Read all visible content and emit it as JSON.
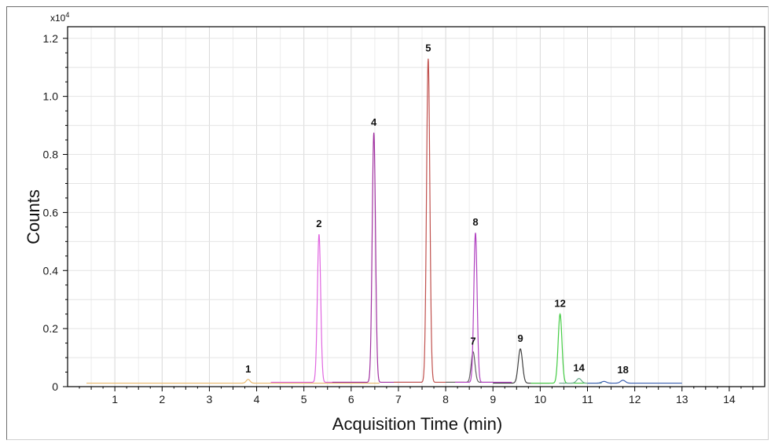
{
  "chart_data": {
    "type": "line",
    "title": "",
    "xlabel": "Acquisition Time (min)",
    "ylabel": "Counts",
    "y_multiplier": "x10",
    "y_multiplier_exp": "4",
    "xlim": [
      0,
      14.75
    ],
    "ylim": [
      0,
      1.24
    ],
    "x_ticks": [
      "1",
      "2",
      "3",
      "4",
      "5",
      "6",
      "7",
      "8",
      "9",
      "10",
      "11",
      "12",
      "13",
      "14"
    ],
    "y_ticks": [
      "0",
      "0.2",
      "0.4",
      "0.6",
      "0.8",
      "1.0",
      "1.2"
    ],
    "grid": true,
    "series": [
      {
        "color": "#e8b86a",
        "x_range": [
          0.4,
          6.6
        ],
        "baseline": 0.012,
        "peaks": [
          {
            "x": 3.82,
            "y": 0.025,
            "w": 0.04
          }
        ]
      },
      {
        "color": "#e066e0",
        "x_range": [
          4.3,
          6.3
        ],
        "baseline": 0.015,
        "peaks": [
          {
            "x": 5.32,
            "y": 0.525,
            "w": 0.035
          }
        ]
      },
      {
        "color": "#a030a0",
        "x_range": [
          5.6,
          7.5
        ],
        "baseline": 0.015,
        "peaks": [
          {
            "x": 6.48,
            "y": 0.875,
            "w": 0.035
          }
        ]
      },
      {
        "color": "#c0504d",
        "x_range": [
          6.9,
          8.4
        ],
        "baseline": 0.015,
        "peaks": [
          {
            "x": 7.63,
            "y": 1.13,
            "w": 0.035
          }
        ]
      },
      {
        "color": "#606060",
        "x_range": [
          8.0,
          9.0
        ],
        "baseline": 0.015,
        "peaks": [
          {
            "x": 8.58,
            "y": 0.12,
            "w": 0.04
          }
        ]
      },
      {
        "color": "#b040c0",
        "x_range": [
          8.2,
          9.4
        ],
        "baseline": 0.015,
        "peaks": [
          {
            "x": 8.63,
            "y": 0.53,
            "w": 0.035
          }
        ]
      },
      {
        "color": "#404040",
        "x_range": [
          9.0,
          10.2
        ],
        "baseline": 0.012,
        "peaks": [
          {
            "x": 9.58,
            "y": 0.13,
            "w": 0.045
          }
        ]
      },
      {
        "color": "#44cc44",
        "x_range": [
          9.8,
          11.0
        ],
        "baseline": 0.012,
        "peaks": [
          {
            "x": 10.42,
            "y": 0.25,
            "w": 0.04
          }
        ]
      },
      {
        "color": "#66aa88",
        "x_range": [
          10.4,
          11.3
        ],
        "baseline": 0.012,
        "peaks": [
          {
            "x": 10.82,
            "y": 0.028,
            "w": 0.05
          }
        ]
      },
      {
        "color": "#3a5fb0",
        "x_range": [
          11.0,
          13.0
        ],
        "baseline": 0.012,
        "peaks": [
          {
            "x": 11.35,
            "y": 0.018,
            "w": 0.05
          },
          {
            "x": 11.75,
            "y": 0.022,
            "w": 0.05
          }
        ]
      }
    ],
    "peak_labels": [
      {
        "text": "1",
        "x": 3.82,
        "y": 0.025
      },
      {
        "text": "2",
        "x": 5.32,
        "y": 0.525
      },
      {
        "text": "4",
        "x": 6.48,
        "y": 0.875
      },
      {
        "text": "5",
        "x": 7.63,
        "y": 1.13
      },
      {
        "text": "7",
        "x": 8.58,
        "y": 0.12
      },
      {
        "text": "8",
        "x": 8.63,
        "y": 0.53
      },
      {
        "text": "9",
        "x": 9.58,
        "y": 0.13
      },
      {
        "text": "12",
        "x": 10.42,
        "y": 0.25
      },
      {
        "text": "14",
        "x": 10.82,
        "y": 0.028
      },
      {
        "text": "18",
        "x": 11.75,
        "y": 0.022
      }
    ]
  }
}
